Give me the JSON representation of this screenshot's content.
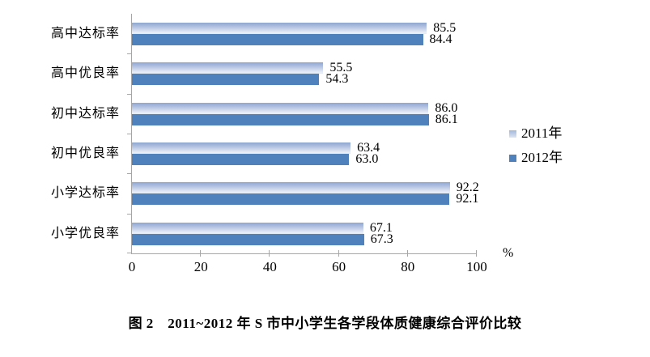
{
  "caption": "图 2　2011~2012 年 S 市中小学生各学段体质健康综合评价比较",
  "chart_data": {
    "type": "bar",
    "orientation": "horizontal",
    "title": "",
    "categories": [
      "高中达标率",
      "高中优良率",
      "初中达标率",
      "初中优良率",
      "小学达标率",
      "小学优良率"
    ],
    "series": [
      {
        "name": "2011年",
        "fill": "gradient",
        "color": "#9fb2d8",
        "values": [
          85.5,
          55.5,
          86.0,
          63.4,
          92.2,
          67.1
        ],
        "labels": [
          "85.5",
          "55.5",
          "86.0",
          "63.4",
          "92.2",
          "67.1"
        ]
      },
      {
        "name": "2012年",
        "fill": "solid",
        "color": "#4f81bd",
        "values": [
          84.4,
          54.3,
          86.1,
          63.0,
          92.1,
          67.3
        ],
        "labels": [
          "84.4",
          "54.3",
          "86.1",
          "63.0",
          "92.1",
          "67.3"
        ]
      }
    ],
    "xlim": [
      0,
      100
    ],
    "x_ticks": [
      "0",
      "20",
      "40",
      "60",
      "80",
      "100"
    ],
    "x_unit": "%",
    "value_labels_shown": true,
    "grid": false,
    "legend_position": "right",
    "axis_color": "#a6a6a6"
  }
}
